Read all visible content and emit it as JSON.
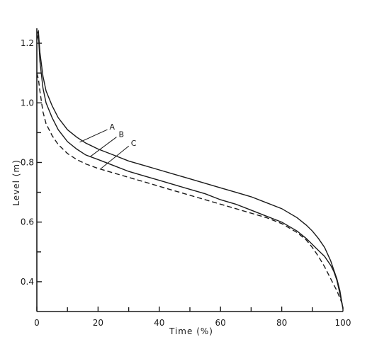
{
  "chart_data": {
    "type": "line",
    "title": "",
    "xlabel": "Time (%)",
    "ylabel": "Level (m)",
    "xlim": [
      0,
      100
    ],
    "ylim": [
      0.3,
      1.25
    ],
    "x_ticks": [
      0,
      20,
      40,
      60,
      80,
      100
    ],
    "x_minor_ticks": [
      10,
      30,
      50,
      70,
      90
    ],
    "y_ticks": [
      0.4,
      0.6,
      0.8,
      1.0,
      1.2
    ],
    "x_tick_labels": [
      "0",
      "20",
      "40",
      "60",
      "80",
      "100"
    ],
    "y_tick_labels": [
      "0.4",
      "0.6",
      "0.8",
      "1.0",
      "1.2"
    ],
    "y_minor_ticks": [
      0.5,
      0.7,
      0.9,
      1.1
    ],
    "grid": false,
    "legend": "none",
    "series": [
      {
        "name": "A",
        "style": "solid",
        "x": [
          0,
          0.5,
          1,
          2,
          3,
          5,
          7,
          10,
          13,
          16,
          20,
          25,
          30,
          35,
          40,
          45,
          50,
          55,
          60,
          65,
          70,
          75,
          80,
          85,
          88,
          90,
          92,
          94,
          96,
          97,
          98,
          99,
          99.5,
          100
        ],
        "y": [
          1.23,
          1.24,
          1.17,
          1.09,
          1.04,
          0.99,
          0.95,
          0.91,
          0.885,
          0.865,
          0.845,
          0.825,
          0.805,
          0.79,
          0.775,
          0.76,
          0.745,
          0.73,
          0.715,
          0.7,
          0.685,
          0.665,
          0.645,
          0.615,
          0.59,
          0.57,
          0.545,
          0.515,
          0.47,
          0.44,
          0.41,
          0.37,
          0.34,
          0.31
        ]
      },
      {
        "name": "B",
        "style": "solid",
        "x": [
          0,
          0.5,
          1,
          2,
          3,
          5,
          7,
          10,
          13,
          16,
          20,
          25,
          30,
          35,
          40,
          45,
          50,
          55,
          60,
          65,
          70,
          75,
          80,
          85,
          88,
          90,
          92,
          94,
          96,
          97,
          98,
          99,
          100
        ],
        "y": [
          1.21,
          1.23,
          1.14,
          1.05,
          1.0,
          0.95,
          0.91,
          0.87,
          0.845,
          0.825,
          0.81,
          0.79,
          0.77,
          0.755,
          0.74,
          0.725,
          0.71,
          0.695,
          0.675,
          0.66,
          0.64,
          0.62,
          0.6,
          0.57,
          0.545,
          0.525,
          0.505,
          0.485,
          0.455,
          0.435,
          0.405,
          0.36,
          0.31
        ]
      },
      {
        "name": "C",
        "style": "dashed",
        "x": [
          0,
          0.5,
          1,
          2,
          3,
          5,
          7,
          10,
          13,
          16,
          20,
          25,
          30,
          35,
          40,
          45,
          50,
          55,
          60,
          65,
          70,
          75,
          80,
          85,
          88,
          90,
          92,
          94,
          96,
          97,
          98,
          99,
          100
        ],
        "y": [
          1.1,
          1.08,
          1.04,
          0.97,
          0.93,
          0.89,
          0.86,
          0.83,
          0.81,
          0.795,
          0.78,
          0.765,
          0.75,
          0.735,
          0.72,
          0.705,
          0.69,
          0.675,
          0.66,
          0.645,
          0.63,
          0.615,
          0.595,
          0.565,
          0.54,
          0.515,
          0.485,
          0.45,
          0.41,
          0.39,
          0.37,
          0.345,
          0.32
        ]
      }
    ],
    "annotations": [
      {
        "text": "A",
        "at_x": 14,
        "at_y": 0.868,
        "label_x": 23.5,
        "label_y": 0.915
      },
      {
        "text": "B",
        "at_x": 17.5,
        "at_y": 0.82,
        "label_x": 26.5,
        "label_y": 0.89
      },
      {
        "text": "C",
        "at_x": 21,
        "at_y": 0.78,
        "label_x": 30.5,
        "label_y": 0.86
      }
    ]
  }
}
